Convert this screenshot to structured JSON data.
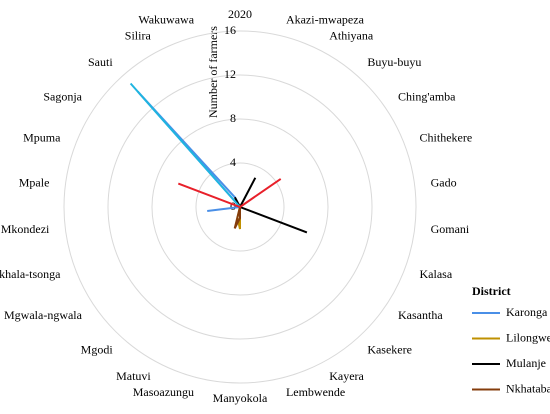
{
  "chart_data": {
    "type": "radar",
    "categories": [
      "2020",
      "Akazi-mwapeza",
      "Athiyana",
      "Buyu-buyu",
      "Ching'amba",
      "Chithekere",
      "Gado",
      "Gomani",
      "Kalasa",
      "Kasantha",
      "Kasekere",
      "Kayera",
      "Lembwende",
      "Manyokola",
      "Masoazungu",
      "Matuvi",
      "Mgodi",
      "Mgwala-ngwala",
      "Mkhala-tsonga",
      "Mkondezi",
      "Mpale",
      "Mpuma",
      "Sagonja",
      "Sauti",
      "Silira",
      "Wakuwawa"
    ],
    "y_label": "Number of farmers",
    "ylim": [
      0,
      16
    ],
    "yticks": [
      0,
      4,
      8,
      12,
      16
    ],
    "grid": true,
    "legend_title": "District",
    "series": [
      {
        "name": "Karonga",
        "color": "#4a8fe7",
        "values": [
          0,
          0,
          0,
          0,
          0,
          0,
          0,
          0,
          0,
          0,
          0,
          0,
          0,
          0,
          0,
          0,
          0,
          0,
          0,
          3,
          0,
          0,
          0,
          14,
          1,
          0
        ]
      },
      {
        "name": "Lilongwe",
        "color": "#bf9000",
        "values": [
          0,
          0,
          0,
          0,
          0,
          0,
          0,
          0,
          0,
          0,
          0,
          0,
          0,
          2,
          1,
          0,
          0,
          0,
          0,
          0,
          0,
          0,
          0,
          0,
          0,
          0
        ]
      },
      {
        "name": "Mulanje",
        "color": "#000000",
        "values": [
          0,
          0,
          3,
          0,
          0,
          0,
          0,
          0,
          6.5,
          0,
          0,
          0,
          0,
          0,
          0,
          0,
          0,
          0,
          0,
          0,
          0,
          0,
          0,
          0,
          1,
          0
        ]
      },
      {
        "name": "Nkhatabay",
        "color": "#843c0c",
        "values": [
          0,
          0,
          0,
          0,
          0,
          0,
          0,
          0,
          0,
          0,
          0,
          0,
          0,
          1,
          2,
          0,
          0,
          0,
          0,
          0,
          0,
          0,
          0,
          0,
          0,
          0
        ]
      },
      {
        "name": null,
        "color": "#1fb5e0",
        "values": [
          0,
          0,
          0,
          0,
          0,
          0,
          0,
          0,
          0,
          0,
          0,
          0,
          0,
          0,
          0,
          0,
          0,
          0,
          0,
          0,
          0,
          0,
          0,
          15,
          0,
          0
        ]
      },
      {
        "name": null,
        "color": "#e8202a",
        "values": [
          0,
          0,
          0,
          0,
          4.5,
          0,
          0,
          0,
          0,
          0,
          0,
          0,
          0,
          0,
          0,
          0,
          0,
          0,
          0,
          0,
          0,
          6,
          0,
          0,
          0,
          0
        ]
      }
    ]
  }
}
